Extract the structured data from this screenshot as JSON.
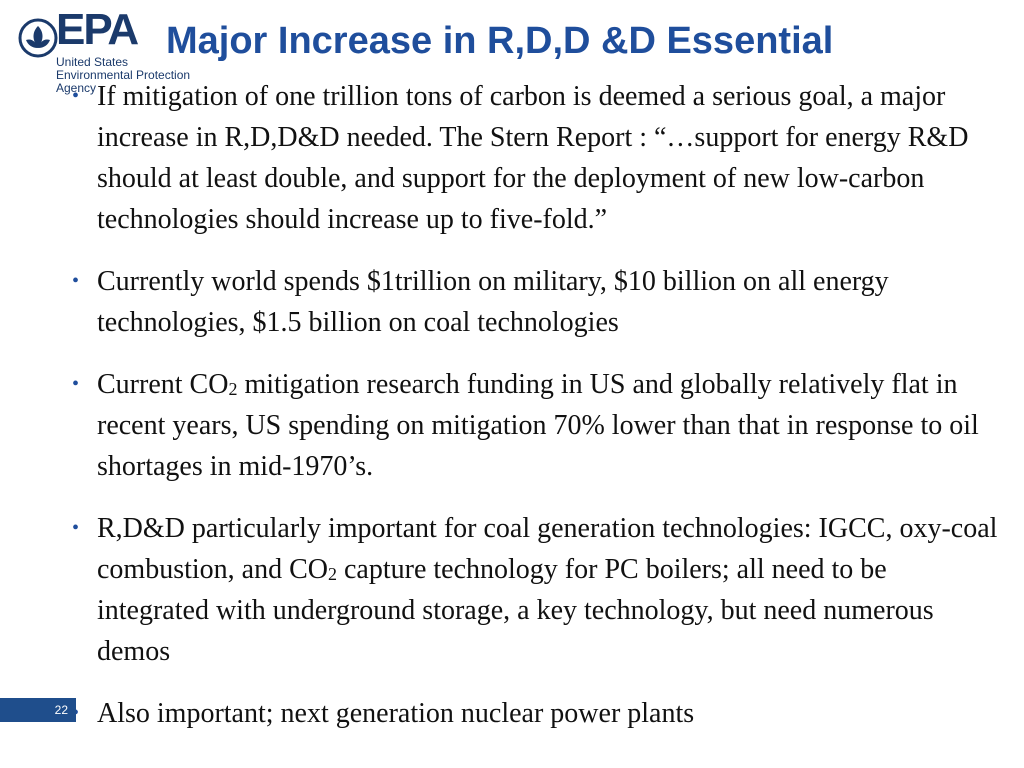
{
  "logo": {
    "wordmark": "EPA",
    "agency_lines": [
      "United States",
      "Environmental Protection",
      "Agency"
    ]
  },
  "title": "Major Increase in R,D,D &D Essential",
  "bullets": [
    {
      "text": "If mitigation of one trillion tons of carbon is deemed a serious goal, a major increase in R,D,D&D needed. The Stern Report : “…support for energy R&D should at least double, and support for the deployment of new low-carbon technologies should increase up to five-fold.”"
    },
    {
      "text": "Currently world spends $1trillion on military, $10 billion on all energy technologies, $1.5 billion on coal technologies"
    },
    {
      "pre": "Current CO",
      "sub": "2",
      "post": " mitigation research funding in US and globally relatively flat in recent years, US spending on mitigation 70% lower than that in response to oil shortages in mid-1970’s."
    },
    {
      "pre": "R,D&D particularly important for coal generation technologies: IGCC, oxy-coal combustion, and CO",
      "sub": "2",
      "post": " capture technology for PC boilers; all need to be integrated with underground storage, a key technology, but need numerous demos"
    },
    {
      "text": "Also important; next generation nuclear power plants"
    }
  ],
  "bullet_symbol": "•",
  "page_number": "22",
  "colors": {
    "title": "#1f4e9c",
    "logo": "#1b3a6b",
    "page_tab": "#1f4e8c",
    "body_text": "#111111"
  }
}
